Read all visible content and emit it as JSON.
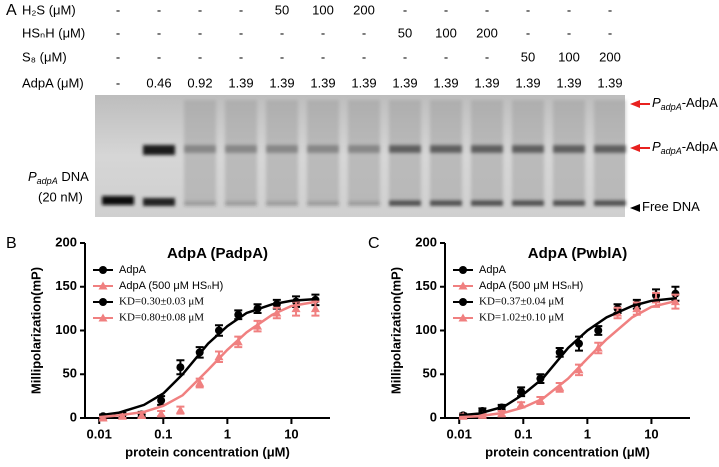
{
  "panel_labels": [
    "A",
    "B",
    "C"
  ],
  "panel_a": {
    "rows": [
      {
        "label": "H₂S (μM)",
        "values": [
          "-",
          "-",
          "-",
          "-",
          "50",
          "100",
          "200",
          "-",
          "-",
          "-",
          "-",
          "-",
          "-"
        ]
      },
      {
        "label": "HSₙH  (μM)",
        "values": [
          "-",
          "-",
          "-",
          "-",
          "-",
          "-",
          "-",
          "50",
          "100",
          "200",
          "-",
          "-",
          "-"
        ]
      },
      {
        "label": "S₈ (μM)",
        "values": [
          "-",
          "-",
          "-",
          "-",
          "-",
          "-",
          "-",
          "-",
          "-",
          "-",
          "50",
          "100",
          "200"
        ]
      },
      {
        "label": "AdpA (μM)",
        "values": [
          "-",
          "0.46",
          "0.92",
          "1.39",
          "1.39",
          "1.39",
          "1.39",
          "1.39",
          "1.39",
          "1.39",
          "1.39",
          "1.39",
          "1.39"
        ]
      }
    ],
    "left_label": {
      "text": [
        "P",
        "adpA",
        " DNA"
      ],
      "conc": "(20 nM)"
    },
    "arrows": [
      {
        "text": [
          "P",
          "adpA",
          "-AdpA"
        ],
        "color": "#e8211f"
      },
      {
        "text": [
          "P",
          "adpA",
          "-AdpA"
        ],
        "color": "#e8211f"
      },
      {
        "text": [
          "Free DNA"
        ],
        "color": "#000000"
      }
    ]
  },
  "chart_data": [
    {
      "type": "scatter",
      "title": "AdpA (PadpA)",
      "xlabel": "protein concentration (μM)",
      "ylabel": "Millipolarization(mP)",
      "xscale": "log",
      "xlim": [
        0.006,
        40
      ],
      "ylim": [
        0,
        200
      ],
      "xticks": [
        0.01,
        0.1,
        1,
        10
      ],
      "yticks": [
        0,
        50,
        100,
        150,
        200
      ],
      "series": [
        {
          "name": "AdpA",
          "color": "#000000",
          "marker": "circle",
          "x": [
            0.0115,
            0.023,
            0.046,
            0.0925,
            0.185,
            0.37,
            0.74,
            1.48,
            2.96,
            5.92,
            11.8,
            23.7
          ],
          "values": [
            2,
            3,
            4,
            20,
            58,
            75,
            100,
            118,
            125,
            130,
            133,
            135
          ],
          "errors": [
            2,
            3,
            3,
            5,
            8,
            6,
            6,
            5,
            5,
            5,
            6,
            6
          ]
        },
        {
          "name": "AdpA (500 μM HSₙH)",
          "color": "#f08080",
          "marker": "triangle",
          "x": [
            0.0115,
            0.023,
            0.046,
            0.0925,
            0.185,
            0.37,
            0.74,
            1.48,
            2.96,
            5.92,
            11.8,
            23.7
          ],
          "values": [
            0,
            2,
            3,
            5,
            9,
            40,
            70,
            87,
            105,
            120,
            125,
            125
          ],
          "errors": [
            2,
            2,
            3,
            3,
            4,
            5,
            6,
            6,
            6,
            6,
            8,
            8
          ]
        },
        {
          "name": "KD=0.30±0.03 μM",
          "color": "#000000",
          "marker": "circle",
          "line": true,
          "x": [
            0.01,
            0.02,
            0.05,
            0.1,
            0.2,
            0.5,
            1,
            2,
            5,
            10,
            25
          ],
          "values": [
            3,
            6,
            15,
            28,
            50,
            85,
            105,
            120,
            130,
            134,
            136
          ]
        },
        {
          "name": "KD=0.80±0.08 μM",
          "color": "#f08080",
          "marker": "triangle",
          "line": true,
          "x": [
            0.01,
            0.02,
            0.05,
            0.1,
            0.2,
            0.5,
            1,
            2,
            5,
            10,
            25
          ],
          "values": [
            1,
            3,
            7,
            14,
            26,
            55,
            78,
            98,
            118,
            128,
            133
          ]
        }
      ]
    },
    {
      "type": "scatter",
      "title": "AdpA (PwblA)",
      "xlabel": "protein concentration (μM)",
      "ylabel": "Millipolarization(mP)",
      "xscale": "log",
      "xlim": [
        0.006,
        40
      ],
      "ylim": [
        0,
        200
      ],
      "xticks": [
        0.01,
        0.1,
        1,
        10
      ],
      "yticks": [
        0,
        50,
        100,
        150,
        200
      ],
      "series": [
        {
          "name": "AdpA",
          "color": "#000000",
          "marker": "circle",
          "x": [
            0.0115,
            0.023,
            0.046,
            0.0925,
            0.185,
            0.37,
            0.74,
            1.48,
            2.96,
            5.92,
            11.8,
            23.7
          ],
          "values": [
            3,
            8,
            12,
            30,
            45,
            75,
            85,
            100,
            125,
            130,
            140,
            142
          ],
          "errors": [
            2,
            3,
            3,
            5,
            5,
            5,
            8,
            5,
            5,
            5,
            7,
            8
          ]
        },
        {
          "name": "AdpA (500 μM HSₙH)",
          "color": "#f08080",
          "marker": "triangle",
          "x": [
            0.0115,
            0.023,
            0.046,
            0.0925,
            0.185,
            0.37,
            0.74,
            1.48,
            2.96,
            5.92,
            11.8,
            23.7
          ],
          "values": [
            2,
            3,
            5,
            15,
            20,
            35,
            55,
            80,
            120,
            125,
            135,
            133
          ],
          "errors": [
            2,
            2,
            3,
            3,
            4,
            5,
            6,
            6,
            6,
            7,
            8,
            8
          ]
        },
        {
          "name": "KD=0.37±0.04 μM",
          "color": "#000000",
          "marker": "circle",
          "line": true,
          "x": [
            0.01,
            0.02,
            0.05,
            0.1,
            0.2,
            0.5,
            1,
            2,
            5,
            10,
            25
          ],
          "values": [
            3,
            5,
            13,
            27,
            45,
            80,
            100,
            115,
            128,
            134,
            137
          ]
        },
        {
          "name": "KD=1.02±0.10 μM",
          "color": "#f08080",
          "marker": "triangle",
          "line": true,
          "x": [
            0.01,
            0.02,
            0.05,
            0.1,
            0.2,
            0.5,
            1,
            2,
            5,
            10,
            25
          ],
          "values": [
            1,
            2,
            6,
            12,
            22,
            45,
            68,
            90,
            115,
            127,
            134
          ]
        }
      ]
    }
  ]
}
